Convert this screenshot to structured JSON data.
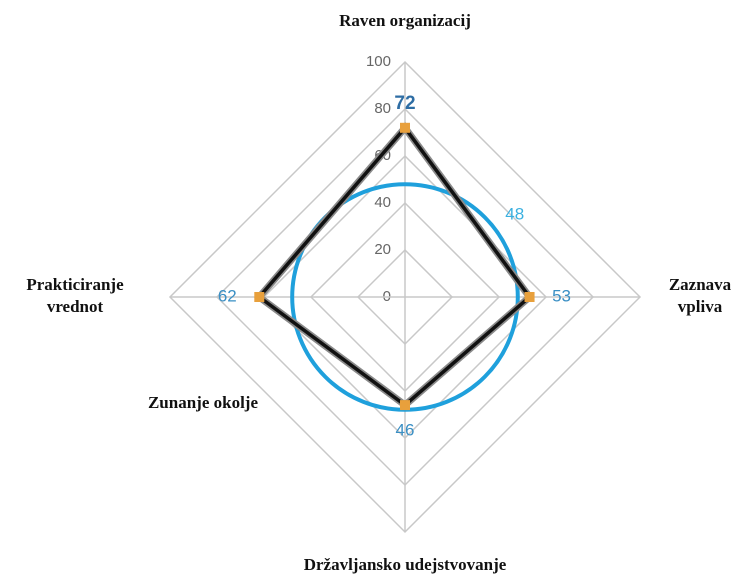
{
  "chart_data": {
    "type": "radar",
    "categories": [
      "Raven organizacij",
      "Zaznava vpliva",
      "Državljansko udejstvovanje",
      "Prakticiranje vrednot"
    ],
    "series": [
      {
        "color": "#111111",
        "marker_color": "#e8a03c",
        "values": [
          72,
          53,
          46,
          62
        ]
      }
    ],
    "reference_circle": {
      "value": 48,
      "color": "#1fa0dc"
    },
    "annotations": [
      {
        "text": "Zunanje okolje"
      }
    ],
    "rlim": [
      0,
      100
    ],
    "rticks": [
      0,
      20,
      40,
      60,
      80,
      100
    ],
    "grid": true
  }
}
